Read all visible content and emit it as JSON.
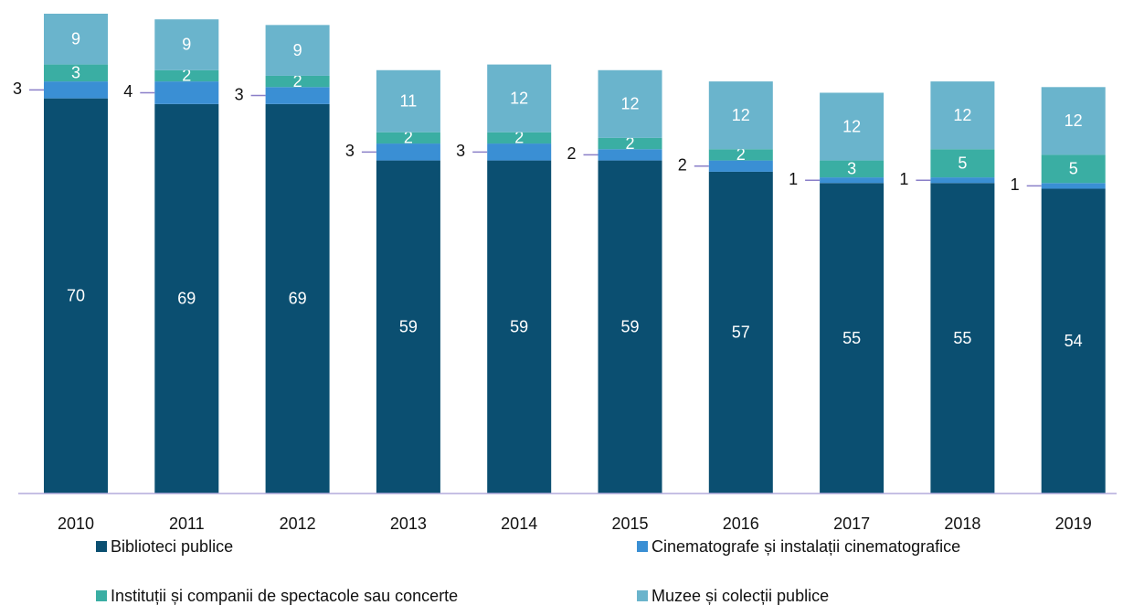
{
  "chart_data": {
    "type": "stacked_bar",
    "categories": [
      "2010",
      "2011",
      "2012",
      "2013",
      "2014",
      "2015",
      "2016",
      "2017",
      "2018",
      "2019"
    ],
    "series": [
      {
        "name": "Biblioteci publice",
        "color": "#0b4f71",
        "values": [
          70,
          69,
          69,
          59,
          59,
          59,
          57,
          55,
          55,
          54
        ]
      },
      {
        "name": "Cinematografe și instalații cinematografice",
        "color": "#3a8fd4",
        "values": [
          3,
          4,
          3,
          3,
          3,
          2,
          2,
          1,
          1,
          1
        ],
        "label_position": "outside-left"
      },
      {
        "name": "Instituții și companii de spectacole sau concerte",
        "color": "#3aaea3",
        "values": [
          3,
          2,
          2,
          2,
          2,
          2,
          2,
          3,
          5,
          5
        ]
      },
      {
        "name": "Muzee și colecții publice",
        "color": "#6ab4cc",
        "values": [
          9,
          9,
          9,
          11,
          12,
          12,
          12,
          12,
          12,
          12
        ]
      }
    ],
    "legend": "bottom"
  }
}
